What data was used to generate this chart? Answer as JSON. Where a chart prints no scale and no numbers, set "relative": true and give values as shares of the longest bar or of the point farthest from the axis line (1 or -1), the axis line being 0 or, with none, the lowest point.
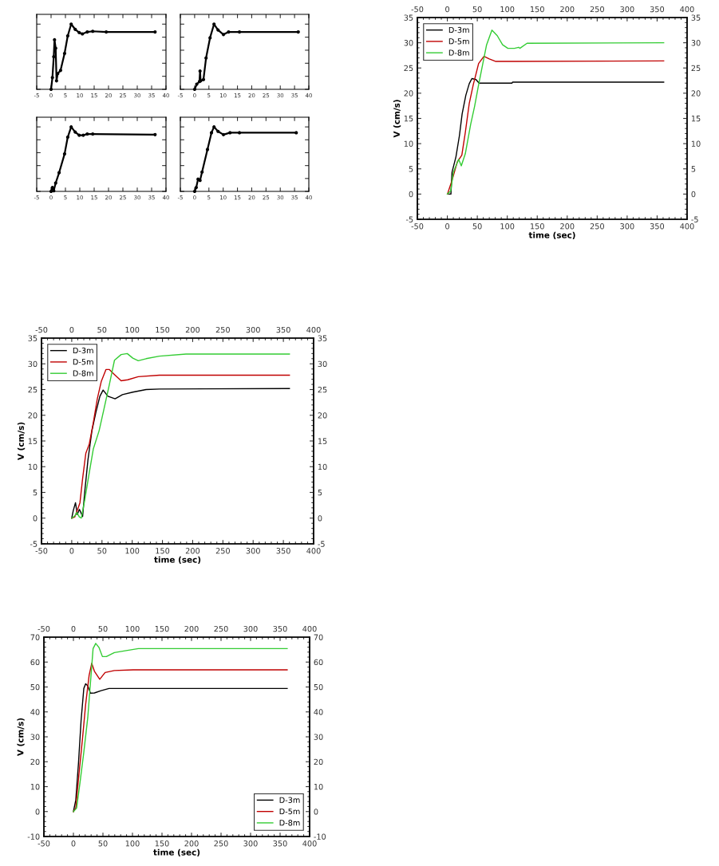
{
  "chart_data": [
    {
      "type": "line",
      "relative": true,
      "tick_labels": "x",
      "marker": "circle",
      "xlim": [
        -5,
        40
      ],
      "xticks": [
        -5,
        0,
        5,
        10,
        15,
        20,
        25,
        30,
        35,
        40
      ],
      "series": [
        {
          "color": "#000000",
          "x": [
            0,
            0.47,
            0.93,
            1.2,
            1.6,
            1.9,
            2.3,
            3.3,
            4.7,
            5.8,
            7.0,
            8.4,
            9.8,
            10.9,
            12.6,
            14.5,
            19.2,
            36.2
          ],
          "values": [
            0,
            0.18,
            0.5,
            0.76,
            0.63,
            0.13,
            0.24,
            0.29,
            0.55,
            0.82,
            1,
            0.92,
            0.87,
            0.85,
            0.88,
            0.89,
            0.88,
            0.88
          ]
        }
      ]
    },
    {
      "type": "line",
      "relative": true,
      "tick_labels": "x",
      "marker": "circle",
      "xlim": [
        -5,
        40
      ],
      "xticks": [
        -5,
        0,
        5,
        10,
        15,
        20,
        25,
        30,
        35,
        40
      ],
      "series": [
        {
          "color": "#000000",
          "x": [
            0,
            0.75,
            1.7,
            1.9,
            2.1,
            3.1,
            4.0,
            5.4,
            6.8,
            8.2,
            10.1,
            11.9,
            15.7,
            36.3
          ],
          "values": [
            0,
            0.08,
            0.12,
            0.28,
            0.13,
            0.15,
            0.48,
            0.79,
            1,
            0.91,
            0.84,
            0.88,
            0.88,
            0.88
          ]
        }
      ]
    },
    {
      "type": "line",
      "relative": true,
      "tick_labels": "x",
      "marker": "circle",
      "xlim": [
        -5,
        40
      ],
      "xticks": [
        -5,
        0,
        5,
        10,
        15,
        20,
        25,
        30,
        35,
        40
      ],
      "series": [
        {
          "color": "#000000",
          "x": [
            0,
            0.47,
            0.93,
            1.6,
            2.8,
            4.7,
            5.8,
            7.0,
            8.4,
            9.8,
            11.2,
            12.6,
            14.5,
            36.2
          ],
          "values": [
            0,
            0.06,
            0.01,
            0.13,
            0.29,
            0.58,
            0.84,
            1,
            0.92,
            0.87,
            0.87,
            0.89,
            0.89,
            0.88
          ]
        }
      ]
    },
    {
      "type": "line",
      "relative": true,
      "tick_labels": "x",
      "marker": "circle",
      "xlim": [
        -5,
        40
      ],
      "xticks": [
        -5,
        0,
        5,
        10,
        15,
        20,
        25,
        30,
        35,
        40
      ],
      "series": [
        {
          "color": "#000000",
          "x": [
            0,
            0.56,
            1.2,
            1.9,
            2.6,
            4.5,
            5.9,
            6.8,
            8.2,
            10.1,
            12.4,
            15.7,
            35.6
          ],
          "values": [
            0,
            0.06,
            0.19,
            0.17,
            0.3,
            0.65,
            0.91,
            1,
            0.93,
            0.88,
            0.91,
            0.91,
            0.91
          ]
        }
      ]
    },
    {
      "type": "line",
      "xlabel": "time (sec)",
      "ylabel": "V (cm/s)",
      "legend": "top left",
      "xlim": [
        -50,
        400
      ],
      "xticks": [
        -50,
        0,
        50,
        100,
        150,
        200,
        250,
        300,
        350,
        400
      ],
      "x2lim": [
        -50,
        400
      ],
      "x2ticks": [
        -50,
        0,
        50,
        100,
        150,
        200,
        250,
        300,
        350,
        400
      ],
      "ylim": [
        -5,
        35
      ],
      "yticks": [
        -5,
        0,
        5,
        10,
        15,
        20,
        25,
        30,
        35
      ],
      "y2lim": [
        -5,
        35
      ],
      "y2ticks": [
        -5,
        0,
        5,
        10,
        15,
        20,
        25,
        30,
        35
      ],
      "series": [
        {
          "name": "D-3m",
          "color": "#000000",
          "x": [
            2,
            6,
            7.8,
            14.4,
            20.2,
            24.7,
            30.9,
            36.6,
            41,
            47.8,
            53,
            108,
            109,
            361
          ],
          "values": [
            0,
            0,
            4.3,
            7.4,
            11.6,
            15.9,
            19.6,
            21.9,
            22.9,
            22.7,
            22,
            22,
            22.2,
            22.2
          ]
        },
        {
          "name": "D-5m",
          "color": "#c00000",
          "x": [
            0.2,
            7.8,
            16.7,
            24.2,
            30,
            36.6,
            43.3,
            47.8,
            52.2,
            61.1,
            70,
            81,
            114,
            361
          ],
          "values": [
            0,
            2.7,
            6.4,
            7.7,
            12.2,
            18,
            21.7,
            23.8,
            25.9,
            27.3,
            26.8,
            26.3,
            26.3,
            26.4
          ]
        },
        {
          "name": "D-8m",
          "color": "#33cc33",
          "x": [
            0,
            5.6,
            10,
            18.9,
            23.3,
            30,
            38.9,
            45.5,
            51.3,
            56.6,
            65.5,
            74.4,
            83.3,
            92.2,
            101,
            112,
            119,
            121,
            133,
            361
          ],
          "values": [
            0,
            0.6,
            4.3,
            6.9,
            5.6,
            8,
            13.8,
            17.4,
            21.1,
            24.3,
            29.6,
            32.5,
            31.4,
            29.6,
            28.9,
            28.9,
            29.1,
            28.9,
            29.9,
            30
          ]
        }
      ]
    },
    {
      "type": "line",
      "xlabel": "time (sec)",
      "ylabel": "V (cm/s)",
      "legend": "top left",
      "xlim": [
        -50,
        400
      ],
      "xticks": [
        -50,
        0,
        50,
        100,
        150,
        200,
        250,
        300,
        350,
        400
      ],
      "x2lim": [
        -50,
        400
      ],
      "x2ticks": [
        -50,
        0,
        50,
        100,
        150,
        200,
        250,
        300,
        350,
        400
      ],
      "ylim": [
        -5,
        35
      ],
      "yticks": [
        -5,
        0,
        5,
        10,
        15,
        20,
        25,
        30,
        35
      ],
      "y2lim": [
        -5,
        35
      ],
      "y2ticks": [
        -5,
        0,
        5,
        10,
        15,
        20,
        25,
        30,
        35
      ],
      "series": [
        {
          "name": "D-3m",
          "color": "#000000",
          "x": [
            0,
            2.6,
            6.2,
            9.2,
            12.7,
            18,
            21.5,
            26.8,
            33.4,
            40,
            46.6,
            51.9,
            59.8,
            71.7,
            83.9,
            101,
            123,
            145,
            360
          ],
          "values": [
            0,
            1.5,
            3,
            0.7,
            1.7,
            0.3,
            5.1,
            11.3,
            17,
            20.6,
            23.7,
            24.9,
            23.7,
            23.2,
            24,
            24.5,
            25,
            25.1,
            25.2
          ]
        },
        {
          "name": "D-5m",
          "color": "#c00000",
          "x": [
            0,
            4.9,
            9.2,
            13.6,
            18,
            23.3,
            29,
            35.7,
            42.3,
            48.9,
            56.7,
            62,
            70,
            81.7,
            92.7,
            110,
            145,
            360
          ],
          "values": [
            0,
            0.2,
            1.5,
            3,
            7.7,
            12.6,
            14.4,
            18.6,
            23.2,
            26.6,
            28.9,
            28.9,
            28,
            26.7,
            26.9,
            27.5,
            27.8,
            27.8
          ]
        },
        {
          "name": "D-8m",
          "color": "#33cc33",
          "x": [
            0,
            4.9,
            8.4,
            12.7,
            15.8,
            21.5,
            28.1,
            35.6,
            45.3,
            53.1,
            61.9,
            70.7,
            81.7,
            91.8,
            101,
            110,
            123,
            145,
            189,
            360
          ],
          "values": [
            0,
            0.4,
            1.1,
            0.2,
            0,
            3.5,
            8.2,
            13.4,
            17,
            21.1,
            25.8,
            30.7,
            31.8,
            32,
            31.1,
            30.6,
            31,
            31.5,
            31.9,
            31.9
          ]
        }
      ]
    },
    {
      "type": "line",
      "xlabel": "time (sec)",
      "ylabel": "V (cm/s)",
      "legend": "bottom right",
      "xlim": [
        -50,
        400
      ],
      "xticks": [
        -50,
        0,
        50,
        100,
        150,
        200,
        250,
        300,
        350,
        400
      ],
      "x2lim": [
        -50,
        400
      ],
      "x2ticks": [
        -50,
        0,
        50,
        100,
        150,
        200,
        250,
        300,
        350,
        400
      ],
      "ylim": [
        -10,
        70
      ],
      "yticks": [
        -10,
        0,
        10,
        20,
        30,
        40,
        50,
        60,
        70
      ],
      "y2lim": [
        -10,
        70
      ],
      "y2ticks": [
        -10,
        0,
        10,
        20,
        30,
        40,
        50,
        60,
        70
      ],
      "series": [
        {
          "name": "D-3m",
          "color": "#000000",
          "x": [
            0,
            4,
            8.6,
            13,
            17.6,
            20.7,
            24.3,
            28.8,
            35.6,
            46.8,
            60.3,
            101,
            362
          ],
          "values": [
            0,
            4.6,
            19.5,
            36.6,
            49.4,
            51.3,
            50.5,
            47.5,
            47.6,
            48.5,
            49.4,
            49.4,
            49.4
          ]
        },
        {
          "name": "D-5m",
          "color": "#c00000",
          "x": [
            0,
            4,
            8.6,
            15.3,
            20.7,
            26.6,
            31,
            35.6,
            44.6,
            53.6,
            69.3,
            101,
            362
          ],
          "values": [
            0,
            1.4,
            13.1,
            29.1,
            43,
            54.7,
            59.5,
            56.3,
            53.1,
            55.8,
            56.6,
            56.9,
            56.9
          ]
        },
        {
          "name": "D-8m",
          "color": "#33cc33",
          "x": [
            0,
            5.4,
            10.8,
            17.6,
            24.3,
            28.8,
            33.3,
            37.8,
            43.2,
            49.1,
            55.8,
            69.3,
            87.3,
            110,
            146,
            362
          ],
          "values": [
            0,
            1.4,
            11,
            23.8,
            37.7,
            51.5,
            65.4,
            67.5,
            65.9,
            62.2,
            62.2,
            63.8,
            64.5,
            65.4,
            65.4,
            65.4
          ]
        }
      ]
    }
  ]
}
